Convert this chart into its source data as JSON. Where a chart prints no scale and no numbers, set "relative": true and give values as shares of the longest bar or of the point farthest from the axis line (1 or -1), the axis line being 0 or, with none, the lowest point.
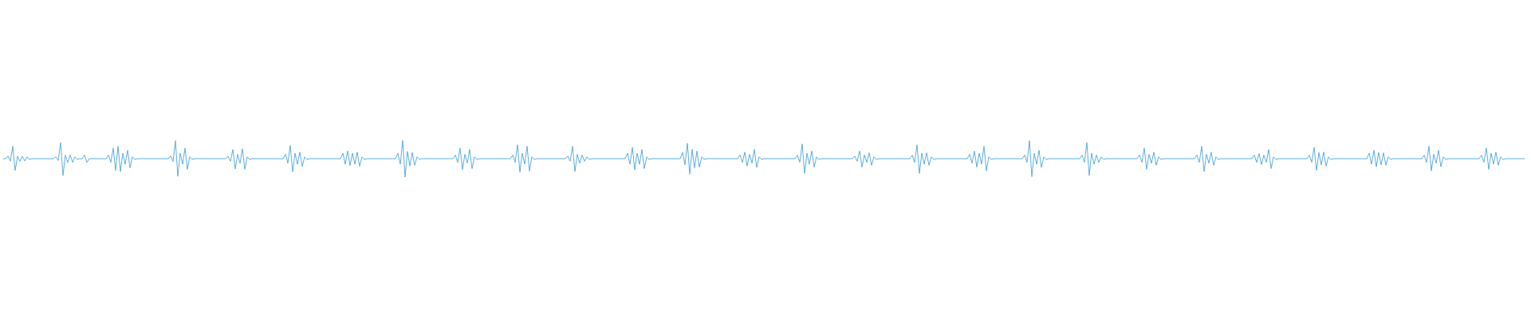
{
  "chart_data": {
    "type": "line",
    "relative": true,
    "color": "#5dade2",
    "categories": [
      null,
      null,
      null,
      null,
      null,
      null,
      null,
      null,
      null,
      null,
      null,
      null,
      null,
      null,
      null,
      null,
      null,
      null,
      null,
      null,
      null,
      null,
      null,
      null,
      null,
      null,
      null,
      null,
      null,
      null,
      null,
      null,
      null,
      null,
      null,
      null,
      null,
      null,
      null,
      null,
      null,
      null,
      null,
      null,
      null,
      null,
      null,
      null,
      null,
      null,
      null,
      null,
      null,
      null,
      null,
      null,
      null,
      null,
      null,
      null,
      null,
      null,
      null,
      null,
      null,
      null,
      null,
      null,
      null,
      null,
      null,
      null,
      null,
      null,
      null,
      null,
      null,
      null,
      null,
      null,
      null,
      null,
      null,
      null,
      null,
      null,
      null,
      null,
      null,
      null,
      null,
      null,
      null,
      null,
      null,
      null,
      null,
      null,
      null,
      null,
      null,
      null,
      null,
      null,
      null,
      null,
      null,
      null,
      null,
      null,
      null,
      null,
      null,
      null,
      null,
      null,
      null,
      null,
      null,
      null,
      null,
      null,
      null,
      null,
      null,
      null,
      null,
      null,
      null,
      null,
      null,
      null,
      null,
      null,
      null,
      null,
      null,
      null,
      null,
      null,
      null,
      null,
      null,
      null,
      null,
      null,
      null,
      null,
      null,
      null,
      null,
      null,
      null,
      null,
      null,
      null,
      null,
      null,
      null,
      null,
      null,
      null,
      null,
      null,
      null,
      null,
      null,
      null,
      null,
      null,
      null,
      null,
      null,
      null,
      null,
      null,
      null,
      null,
      null,
      null,
      null,
      null,
      null,
      null,
      null,
      null,
      null,
      null,
      null,
      null,
      null,
      null,
      null,
      null,
      null,
      null,
      null,
      null,
      null,
      null,
      null,
      null,
      null,
      null,
      null,
      null,
      null,
      null,
      null,
      null,
      null,
      null,
      null,
      null,
      null,
      null,
      null,
      null,
      null,
      null,
      null,
      null,
      null,
      null,
      null,
      null,
      null,
      null,
      null,
      null,
      null,
      null,
      null,
      null,
      null,
      null,
      null,
      null,
      null,
      null,
      null,
      null,
      null,
      null,
      null,
      null,
      null,
      null,
      null,
      null,
      null,
      null,
      null,
      null,
      null,
      null,
      null,
      null,
      null,
      null,
      null,
      null,
      null,
      null,
      null,
      null,
      null,
      null,
      null,
      null,
      null,
      null,
      null,
      null,
      null,
      null,
      null,
      null,
      null,
      null,
      null,
      null,
      null,
      null,
      null,
      null,
      null,
      null,
      null,
      null,
      null,
      null,
      null,
      null,
      null,
      null,
      null,
      null,
      null,
      null,
      null,
      null,
      null,
      null,
      null,
      null,
      null,
      null,
      null,
      null,
      null,
      null,
      null,
      null,
      null,
      null,
      null,
      null,
      null,
      null,
      null,
      null,
      null,
      null,
      null,
      null,
      null,
      null,
      null,
      null,
      null,
      null,
      null,
      null,
      null,
      null,
      null,
      null,
      null,
      null,
      null,
      null,
      null,
      null,
      null,
      null,
      null,
      null,
      null,
      null,
      null,
      null,
      null,
      null,
      null,
      null,
      null,
      null,
      null,
      null,
      null,
      null,
      null,
      null,
      null,
      null,
      null,
      null,
      null,
      null,
      null,
      null,
      null,
      null,
      null,
      null,
      null,
      null,
      null,
      null,
      null,
      null,
      null,
      null,
      null,
      null,
      null,
      null,
      null,
      null,
      null,
      null,
      null,
      null,
      null,
      null,
      null,
      null,
      null,
      null,
      null,
      null,
      null,
      null,
      null,
      null,
      null,
      null,
      null,
      null,
      null,
      null,
      null,
      null,
      null,
      null,
      null,
      null,
      null,
      null,
      null,
      null,
      null,
      null,
      null,
      null,
      null,
      null,
      null,
      null,
      null,
      null,
      null,
      null,
      null,
      null,
      null,
      null,
      null,
      null,
      null,
      null,
      null,
      null,
      null,
      null,
      null,
      null,
      null,
      null,
      null,
      null,
      null,
      null,
      null,
      null,
      null,
      null,
      null,
      null,
      null,
      null,
      null,
      null,
      null,
      null,
      null,
      null,
      null,
      null,
      null,
      null,
      null,
      null,
      null,
      null,
      null,
      null,
      null,
      null,
      null,
      null,
      null,
      null,
      null,
      null,
      null,
      null,
      null,
      null,
      null,
      null,
      null,
      null,
      null,
      null,
      null,
      null,
      null,
      null,
      null,
      null,
      null,
      null,
      null,
      null,
      null,
      null,
      null,
      null,
      null,
      null,
      null,
      null,
      null,
      null,
      null,
      null,
      null,
      null,
      null,
      null,
      null,
      null,
      null,
      null,
      null,
      null,
      null,
      null,
      null,
      null,
      null,
      null,
      null,
      null,
      null,
      null,
      null,
      null,
      null,
      null,
      null,
      null,
      null,
      null,
      null,
      null,
      null,
      null,
      null,
      null,
      null,
      null,
      null,
      null,
      null,
      null,
      null,
      null,
      null,
      null,
      null,
      null,
      null,
      null,
      null,
      null,
      null,
      null,
      null,
      null,
      null,
      null,
      null,
      null,
      null,
      null,
      null,
      null,
      null,
      null,
      null,
      null,
      null,
      null,
      null,
      null,
      null,
      null,
      null,
      null,
      null,
      null,
      null,
      null,
      null,
      null,
      null,
      null,
      null,
      null,
      null,
      null,
      null,
      null,
      null,
      null,
      null,
      null,
      null,
      null,
      null,
      null,
      null,
      null,
      null,
      null,
      null,
      null,
      null,
      null,
      null,
      null,
      null,
      null,
      null,
      null,
      null,
      null,
      null,
      null,
      null,
      null,
      null,
      null,
      null
    ],
    "values": [
      0.5,
      0.5,
      0.57,
      0.43,
      0.84,
      0.18,
      0.57,
      0.43,
      0.57,
      0.44,
      0.55,
      0.48,
      0.5,
      0.5,
      0.5,
      0.5,
      0.5,
      0.5,
      0.5,
      0.5,
      0.5,
      0.5,
      0.55,
      0.45,
      0.94,
      0.04,
      0.6,
      0.4,
      0.6,
      0.4,
      0.55,
      0.48,
      0.5,
      0.5,
      0.6,
      0.4,
      0.5,
      0.5,
      0.5,
      0.5,
      0.5,
      0.5,
      0.5,
      0.5,
      0.6,
      0.4,
      0.79,
      0.18,
      0.84,
      0.15,
      0.65,
      0.35,
      0.73,
      0.25,
      0.55,
      0.48,
      0.5,
      0.5,
      0.5,
      0.5,
      0.5,
      0.5,
      0.5,
      0.5,
      0.5,
      0.5,
      0.5,
      0.5,
      0.5,
      0.5,
      0.58,
      0.42,
      0.99,
      0.02,
      0.65,
      0.35,
      0.79,
      0.21,
      0.55,
      0.48,
      0.5,
      0.5,
      0.5,
      0.5,
      0.5,
      0.5,
      0.5,
      0.5,
      0.5,
      0.5,
      0.5,
      0.5,
      0.5,
      0.5,
      0.57,
      0.43,
      0.75,
      0.22,
      0.62,
      0.38,
      0.77,
      0.21,
      0.55,
      0.48,
      0.5,
      0.5,
      0.5,
      0.5,
      0.5,
      0.5,
      0.5,
      0.5,
      0.5,
      0.5,
      0.5,
      0.5,
      0.5,
      0.5,
      0.62,
      0.38,
      0.86,
      0.14,
      0.65,
      0.35,
      0.68,
      0.29,
      0.55,
      0.48,
      0.5,
      0.5,
      0.5,
      0.5,
      0.5,
      0.5,
      0.5,
      0.5,
      0.5,
      0.5,
      0.5,
      0.5,
      0.5,
      0.5,
      0.65,
      0.35,
      0.71,
      0.31,
      0.65,
      0.35,
      0.68,
      0.29,
      0.55,
      0.48,
      0.5,
      0.5,
      0.5,
      0.5,
      0.5,
      0.5,
      0.5,
      0.5,
      0.5,
      0.5,
      0.5,
      0.5,
      0.5,
      0.65,
      0.35,
      1,
      0,
      0.7,
      0.3,
      0.67,
      0.32,
      0.55,
      0.48,
      0.5,
      0.5,
      0.5,
      0.5,
      0.5,
      0.5,
      0.5,
      0.5,
      0.5,
      0.5,
      0.5,
      0.5,
      0.5,
      0.5,
      0.6,
      0.4,
      0.79,
      0.2,
      0.62,
      0.38,
      0.75,
      0.23,
      0.55,
      0.48,
      0.5,
      0.5,
      0.5,
      0.5,
      0.5,
      0.5,
      0.5,
      0.5,
      0.5,
      0.5,
      0.5,
      0.5,
      0.5,
      0.5,
      0.6,
      0.4,
      0.88,
      0.13,
      0.65,
      0.35,
      0.84,
      0.16,
      0.55,
      0.48,
      0.5,
      0.5,
      0.5,
      0.5,
      0.5,
      0.5,
      0.5,
      0.5,
      0.5,
      0.5,
      0.5,
      0.5,
      0.5,
      0.57,
      0.43,
      0.84,
      0.15,
      0.62,
      0.38,
      0.6,
      0.43,
      0.55,
      0.48,
      0.5,
      0.5,
      0.5,
      0.5,
      0.5,
      0.5,
      0.5,
      0.5,
      0.5,
      0.5,
      0.5,
      0.5,
      0.5,
      0.5,
      0.5,
      0.65,
      0.35,
      0.81,
      0.2,
      0.65,
      0.35,
      0.75,
      0.23,
      0.55,
      0.48,
      0.5,
      0.5,
      0.5,
      0.5,
      0.5,
      0.5,
      0.5,
      0.5,
      0.5,
      0.5,
      0.5,
      0.5,
      0.5,
      0.67,
      0.33,
      0.92,
      0.08,
      0.75,
      0.25,
      0.71,
      0.27,
      0.55,
      0.48,
      0.5,
      0.5,
      0.5,
      0.5,
      0.5,
      0.5,
      0.5,
      0.5,
      0.5,
      0.5,
      0.5,
      0.5,
      0.5,
      0.5,
      0.6,
      0.4,
      0.68,
      0.3,
      0.62,
      0.38,
      0.75,
      0.26,
      0.55,
      0.48,
      0.5,
      0.5,
      0.5,
      0.5,
      0.5,
      0.5,
      0.5,
      0.5,
      0.5,
      0.5,
      0.5,
      0.5,
      0.5,
      0.5,
      0.6,
      0.4,
      0.9,
      0.1,
      0.65,
      0.35,
      0.71,
      0.27,
      0.55,
      0.48,
      0.5,
      0.5,
      0.5,
      0.5,
      0.5,
      0.5,
      0.5,
      0.5,
      0.5,
      0.5,
      0.5,
      0.5,
      0.5,
      0.5,
      0.57,
      0.43,
      0.71,
      0.27,
      0.6,
      0.4,
      0.66,
      0.32,
      0.55,
      0.48,
      0.5,
      0.5,
      0.5,
      0.5,
      0.5,
      0.5,
      0.5,
      0.5,
      0.5,
      0.5,
      0.5,
      0.5,
      0.5,
      0.5,
      0.6,
      0.4,
      0.88,
      0.1,
      0.65,
      0.35,
      0.66,
      0.32,
      0.55,
      0.48,
      0.5,
      0.5,
      0.5,
      0.5,
      0.5,
      0.5,
      0.5,
      0.5,
      0.5,
      0.5,
      0.5,
      0.5,
      0.5,
      0.5,
      0.62,
      0.38,
      0.71,
      0.27,
      0.65,
      0.35,
      0.84,
      0.17,
      0.55,
      0.48,
      0.5,
      0.5,
      0.5,
      0.5,
      0.5,
      0.5,
      0.5,
      0.5,
      0.5,
      0.5,
      0.5,
      0.5,
      0.5,
      0.6,
      0.4,
      0.99,
      0.01,
      0.65,
      0.35,
      0.73,
      0.26,
      0.55,
      0.48,
      0.5,
      0.5,
      0.5,
      0.5,
      0.5,
      0.5,
      0.5,
      0.5,
      0.5,
      0.5,
      0.5,
      0.5,
      0.5,
      0.5,
      0.6,
      0.4,
      0.94,
      0.04,
      0.65,
      0.35,
      0.6,
      0.4,
      0.55,
      0.48,
      0.5,
      0.5,
      0.5,
      0.5,
      0.5,
      0.5,
      0.5,
      0.5,
      0.5,
      0.5,
      0.5,
      0.5,
      0.5,
      0.5,
      0.6,
      0.4,
      0.79,
      0.21,
      0.62,
      0.38,
      0.68,
      0.32,
      0.55,
      0.48,
      0.5,
      0.5,
      0.5,
      0.5,
      0.5,
      0.5,
      0.5,
      0.5,
      0.5,
      0.5,
      0.5,
      0.5,
      0.5,
      0.5,
      0.6,
      0.4,
      0.84,
      0.15,
      0.62,
      0.38,
      0.68,
      0.32,
      0.55,
      0.48,
      0.5,
      0.5,
      0.5,
      0.5,
      0.5,
      0.5,
      0.5,
      0.5,
      0.5,
      0.5,
      0.5,
      0.5,
      0.5,
      0.5,
      0.6,
      0.4,
      0.64,
      0.34,
      0.6,
      0.4,
      0.75,
      0.23,
      0.55,
      0.48,
      0.5,
      0.5,
      0.5,
      0.5,
      0.5,
      0.5,
      0.5,
      0.5,
      0.5,
      0.5,
      0.5,
      0.5,
      0.5,
      0.6,
      0.4,
      0.81,
      0.18,
      0.67,
      0.33,
      0.68,
      0.3,
      0.55,
      0.48,
      0.5,
      0.5,
      0.5,
      0.5,
      0.5,
      0.5,
      0.5,
      0.5,
      0.5,
      0.5,
      0.5,
      0.5,
      0.5,
      0.5,
      0.5,
      0.65,
      0.35,
      0.73,
      0.28,
      0.67,
      0.33,
      0.66,
      0.32,
      0.55,
      0.48,
      0.5,
      0.5,
      0.5,
      0.5,
      0.5,
      0.5,
      0.5,
      0.5,
      0.5,
      0.5,
      0.5,
      0.5,
      0.5,
      0.6,
      0.4,
      0.84,
      0.17,
      0.62,
      0.38,
      0.73,
      0.28,
      0.55,
      0.48,
      0.5,
      0.5,
      0.5,
      0.5,
      0.5,
      0.5,
      0.5,
      0.5,
      0.5,
      0.5,
      0.5,
      0.5,
      0.5,
      0.5,
      0.6,
      0.4,
      0.79,
      0.21,
      0.65,
      0.35,
      0.68,
      0.32,
      0.55,
      0.48,
      0.5,
      0.5,
      0.5,
      0.5,
      0.5,
      0.5,
      0.5,
      0.5,
      0.5
    ]
  }
}
